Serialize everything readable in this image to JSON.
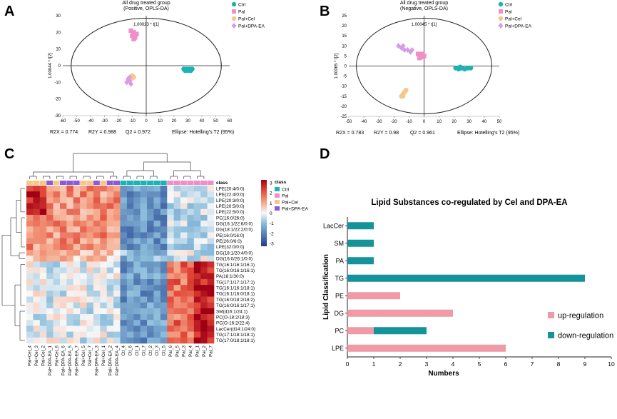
{
  "panels": {
    "A": "A",
    "B": "B",
    "C": "C",
    "D": "D"
  },
  "colors": {
    "ctrl": "#1cb3b3",
    "pal": "#f08ec8",
    "pal_cel": "#f5c889",
    "pal_dpa": "#d99be8",
    "pal_dpa_bar": "#8c5ad6",
    "up": "#ef9aa5",
    "down": "#14949a"
  },
  "chart_data": [
    {
      "type": "scatter",
      "title": "All drug treated group",
      "subtitle": "(Positive, OPLS-DA)",
      "xlabel": "1.00023 * t[1]",
      "ylabel": "1.00044 * t[2]",
      "xlim": [
        -60,
        60
      ],
      "ylim": [
        -30,
        30
      ],
      "xticks": [
        "-60",
        "-50",
        "-40",
        "-30",
        "-20",
        "-10",
        "0",
        "10",
        "20",
        "30",
        "40",
        "50",
        "60"
      ],
      "yticks": [
        "-30",
        "-20",
        "-10",
        "0",
        "10",
        "20",
        "30"
      ],
      "legend": [
        "Ctrl",
        "Pal",
        "Pal+Cel",
        "Pal+DPA-EA"
      ],
      "stats": [
        "R2X = 0.774",
        "R2Y = 0.988",
        "Q2 = 0.972",
        "Ellipse: Hotelling's T2 (95%)"
      ],
      "series": [
        {
          "name": "Ctrl",
          "marker": "circle",
          "color": "#1cb3b3",
          "points": [
            [
              27,
              -2
            ],
            [
              28,
              -3
            ],
            [
              29,
              -2
            ],
            [
              30,
              -3
            ],
            [
              31,
              -2
            ],
            [
              32,
              -3
            ],
            [
              33,
              -2
            ]
          ]
        },
        {
          "name": "Pal",
          "marker": "square",
          "color": "#f08ec8",
          "points": [
            [
              -11,
              21
            ],
            [
              -10,
              18
            ],
            [
              -9,
              20
            ],
            [
              -8,
              17
            ],
            [
              -7,
              19
            ],
            [
              -9,
              16
            ]
          ]
        },
        {
          "name": "Pal+Cel",
          "marker": "circle",
          "color": "#f5c889",
          "points": [
            [
              -10,
              -6
            ],
            [
              -9,
              -7
            ],
            [
              -11,
              -8
            ],
            [
              -12,
              -9
            ]
          ]
        },
        {
          "name": "Pal+DPA-EA",
          "marker": "diamond",
          "color": "#d99be8",
          "points": [
            [
              -13,
              -8
            ],
            [
              -12,
              -9
            ],
            [
              -14,
              -10
            ],
            [
              -11,
              -11
            ],
            [
              -12,
              -7
            ],
            [
              -13,
              -9
            ]
          ]
        }
      ]
    },
    {
      "type": "scatter",
      "title": "All drug treated group",
      "subtitle": "(Negative, OPLS-DA)",
      "xlabel": "1.00045 * t[1]",
      "ylabel": "1.00065 * t[2]",
      "xlim": [
        -50,
        50
      ],
      "ylim": [
        -25,
        25
      ],
      "xticks": [
        "-50",
        "-40",
        "-30",
        "-20",
        "-10",
        "0",
        "10",
        "20",
        "30",
        "40",
        "50"
      ],
      "yticks": [
        "-25",
        "-20",
        "-15",
        "-10",
        "-5",
        "0",
        "5",
        "10",
        "15",
        "20",
        "25"
      ],
      "legend": [
        "Ctrl",
        "Pal",
        "Pal+Cel",
        "Pal+DPA-EA"
      ],
      "stats": [
        "R2X = 0.783",
        "R2Y = 0.98",
        "Q2 = 0.961",
        "Ellipse: Hotelling's T2 (95%)"
      ],
      "series": [
        {
          "name": "Ctrl",
          "marker": "circle",
          "color": "#1cb3b3",
          "points": [
            [
              21,
              -1
            ],
            [
              23,
              -1.5
            ],
            [
              25,
              -1
            ],
            [
              27,
              -1.5
            ],
            [
              29,
              -1
            ],
            [
              31,
              -1
            ],
            [
              24,
              -0.5
            ]
          ]
        },
        {
          "name": "Pal",
          "marker": "square",
          "color": "#f08ec8",
          "points": [
            [
              -4,
              6
            ],
            [
              -3,
              5
            ],
            [
              -2,
              4.5
            ],
            [
              -1,
              6
            ],
            [
              0,
              5
            ],
            [
              -3,
              4
            ]
          ]
        },
        {
          "name": "Pal+Cel",
          "marker": "circle",
          "color": "#f5c889",
          "points": [
            [
              -15,
              -15
            ],
            [
              -14,
              -14
            ],
            [
              -13,
              -13
            ],
            [
              -12,
              -12
            ],
            [
              -14,
              -15
            ]
          ]
        },
        {
          "name": "Pal+DPA-EA",
          "marker": "diamond",
          "color": "#d99be8",
          "points": [
            [
              -17,
              10
            ],
            [
              -15,
              9
            ],
            [
              -14,
              10
            ],
            [
              -13,
              8
            ],
            [
              -11,
              8
            ],
            [
              -9,
              7
            ],
            [
              -8,
              8
            ]
          ]
        }
      ]
    },
    {
      "type": "heatmap",
      "title": "class",
      "legend_title": "class",
      "legend": [
        "Ctrl",
        "Pal",
        "Pal+Cel",
        "Pal+DPA-EA"
      ],
      "colorbar_ticks": [
        "3",
        "2",
        "1",
        "0",
        "-1",
        "-2",
        "-3"
      ],
      "columns": [
        "Pal+Cel_4",
        "Pal+Cel_3",
        "Pal+Cel_2",
        "Pal+DPA-EA_1",
        "Pal+Cel_6",
        "Pal+DPA-EA_6",
        "Pal+DPA-EA_5",
        "Pal+DPA-EA_7",
        "Pal+Cel_5",
        "Pal+Cel_7",
        "Pal+DPA-EA_3",
        "Pal+Cel_1",
        "Pal+DPA-EA_2",
        "Pal+DPA-EA_4",
        "Ctl_4",
        "Ctl_6",
        "Ctl_1",
        "Ctl_7",
        "Ctl_2",
        "Ctl_3",
        "Ctl_5",
        "Pal_6",
        "Pal_5",
        "Pal_3",
        "Pal_4",
        "Pal_1",
        "Pal_2",
        "Pal_7"
      ],
      "column_groups": [
        "Pal+Cel",
        "Pal+Cel",
        "Pal+Cel",
        "Pal+DPA-EA",
        "Pal+Cel",
        "Pal+DPA-EA",
        "Pal+DPA-EA",
        "Pal+DPA-EA",
        "Pal+Cel",
        "Pal+Cel",
        "Pal+DPA-EA",
        "Pal+Cel",
        "Pal+DPA-EA",
        "Pal+DPA-EA",
        "Ctrl",
        "Ctrl",
        "Ctrl",
        "Ctrl",
        "Ctrl",
        "Ctrl",
        "Ctrl",
        "Pal",
        "Pal",
        "Pal",
        "Pal",
        "Pal",
        "Pal",
        "Pal"
      ],
      "rows": [
        "LPE(20:4/0:0)",
        "LPE(22:4/0:0)",
        "LPE(20:3/0:0)",
        "LPE(20:5/0:0)",
        "LPE(22:5/0:0)",
        "PC(16:0/26:0)",
        "DG(16:1/22:6/0:0)",
        "DG(18:1/22:2/0:0)",
        "PE(16:0/16:0)",
        "PE(26:0/6:0)",
        "LPE(32:0/0:0)",
        "DG(18:1/20:4/0:0)",
        "DG(16:0/26:1/0:0)",
        "TG(16:1/16:1/16:1)",
        "TG(16:0/16:1/16:1)",
        "PA(18:1/30:0)",
        "TG(17:1/17:1/17:1)",
        "TG(16:1/16:1/18:1)",
        "TG(16:1/16:0/18:1)",
        "TG(16:0/18:2/18:2)",
        "TG(16:0/16:1/17:1)",
        "SM(d16:1/24:1)",
        "PC(O-18:2/18:3)",
        "PC(O-16:2/22:4)",
        "LacCer(d14:1/24:0)",
        "TG(17:1/18:1/18:1)",
        "TG(17:0/18:1/18:1)"
      ]
    },
    {
      "type": "bar",
      "orientation": "horizontal",
      "stacked": true,
      "title": "Lipid Substances co-regulated by Cel and DPA-EA",
      "xlabel": "Numbers",
      "ylabel": "Lipid Classification",
      "xlim": [
        0,
        10
      ],
      "xticks": [
        "0",
        "1",
        "2",
        "3",
        "4",
        "5",
        "6",
        "7",
        "8",
        "9",
        "10"
      ],
      "categories": [
        "LacCer",
        "SM",
        "PA",
        "TG",
        "PE",
        "DG",
        "PC",
        "LPE"
      ],
      "series": [
        {
          "name": "up-regulation",
          "color": "#ef9aa5",
          "values": [
            0,
            0,
            0,
            0,
            2,
            4,
            1,
            6
          ]
        },
        {
          "name": "down-regulation",
          "color": "#14949a",
          "values": [
            1,
            1,
            1,
            9,
            0,
            0,
            2,
            0
          ]
        }
      ],
      "legend": [
        "up-regulation",
        "down-regulation"
      ]
    }
  ]
}
